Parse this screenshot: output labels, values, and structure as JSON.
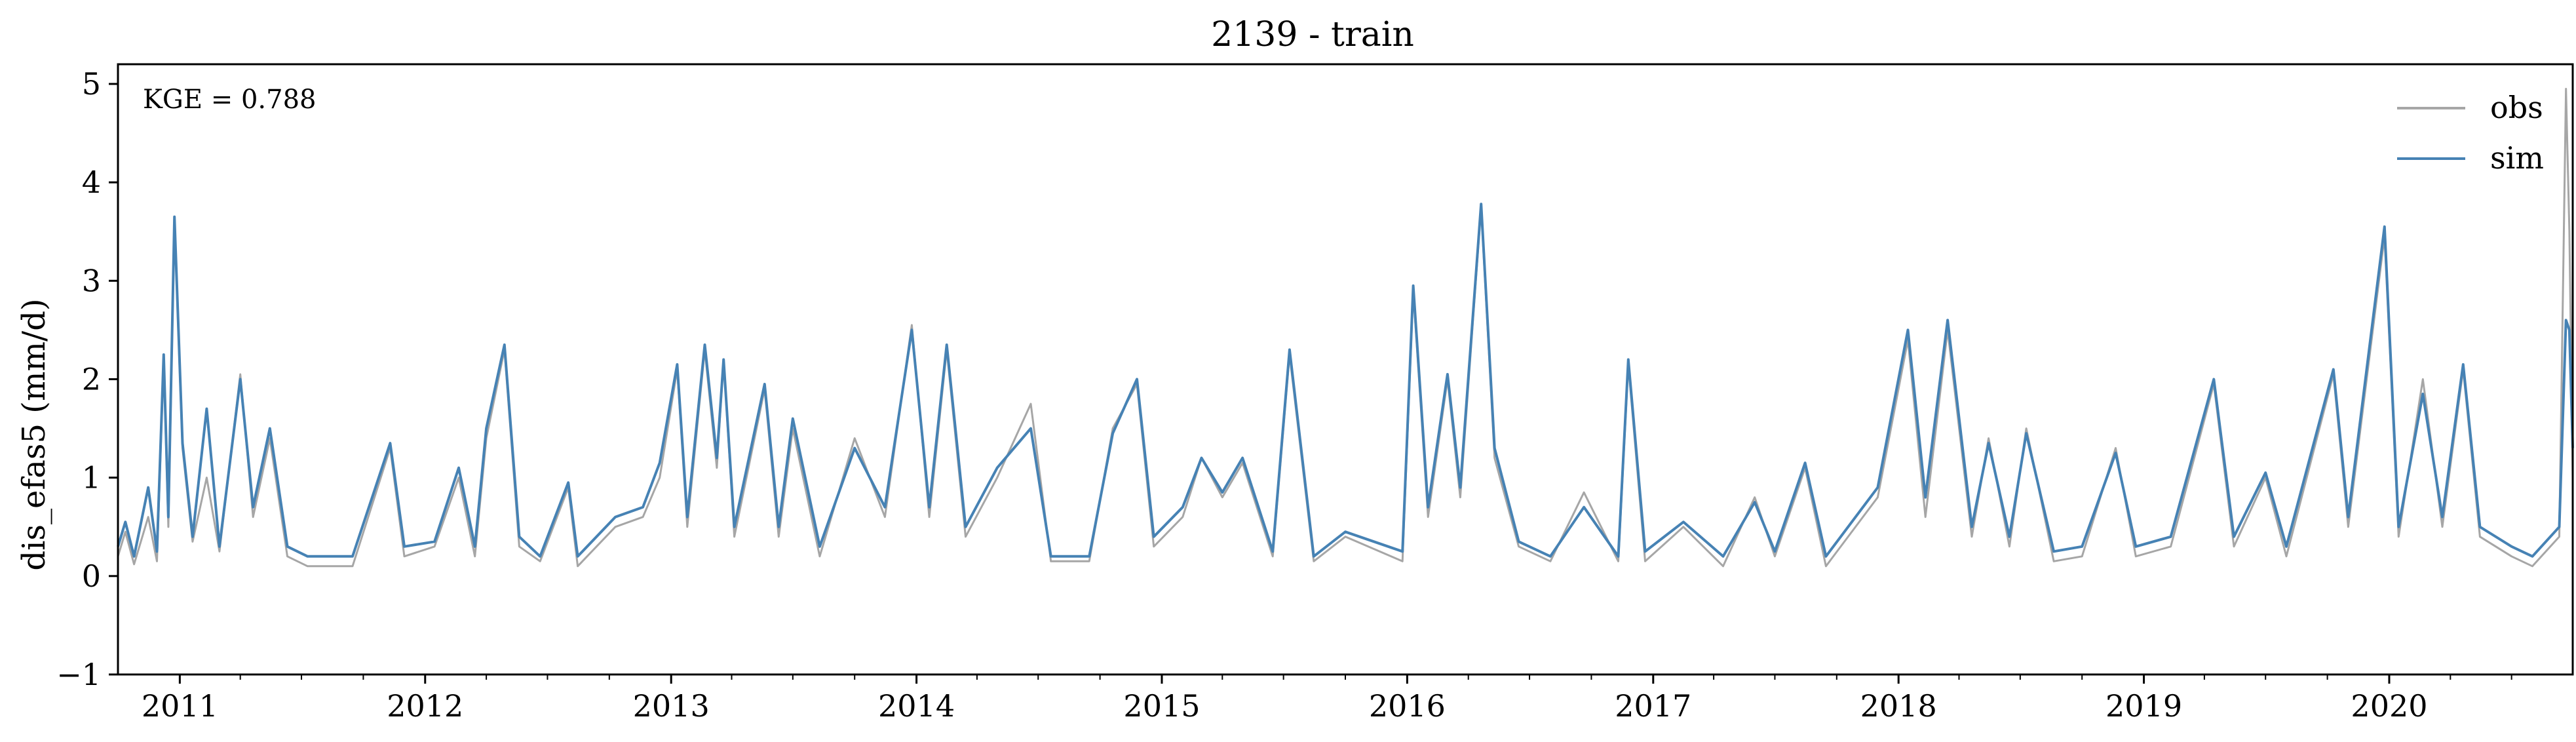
{
  "chart_data": {
    "type": "line",
    "title": "2139 - train",
    "ylabel": "dis_efas5 (mm/d)",
    "xlabel": "",
    "ylim": [
      -1,
      5.2
    ],
    "xlim": [
      "2010-10-01",
      "2020-09-30"
    ],
    "yticks": [
      -1,
      0,
      1,
      2,
      3,
      4,
      5
    ],
    "ytick_labels": [
      "−1",
      "0",
      "1",
      "2",
      "3",
      "4",
      "5"
    ],
    "xticks": [
      "2011-01-01",
      "2012-01-01",
      "2013-01-01",
      "2014-01-01",
      "2015-01-01",
      "2016-01-01",
      "2017-01-01",
      "2018-01-01",
      "2019-01-01",
      "2020-01-01"
    ],
    "xtick_labels": [
      "2011",
      "2012",
      "2013",
      "2014",
      "2015",
      "2016",
      "2017",
      "2018",
      "2019",
      "2020"
    ],
    "annotation": "KGE = 0.788",
    "legend_position": "top-right",
    "grid": false,
    "series": [
      {
        "name": "obs",
        "color": "#a6a6a6",
        "points": [
          [
            "2010-10-01",
            0.2
          ],
          [
            "2010-10-12",
            0.45
          ],
          [
            "2010-10-25",
            0.12
          ],
          [
            "2010-11-15",
            0.6
          ],
          [
            "2010-11-28",
            0.15
          ],
          [
            "2010-12-08",
            2.2
          ],
          [
            "2010-12-15",
            0.5
          ],
          [
            "2010-12-24",
            3.6
          ],
          [
            "2011-01-05",
            1.3
          ],
          [
            "2011-01-20",
            0.35
          ],
          [
            "2011-02-10",
            1.0
          ],
          [
            "2011-03-01",
            0.25
          ],
          [
            "2011-04-01",
            2.05
          ],
          [
            "2011-04-20",
            0.6
          ],
          [
            "2011-05-15",
            1.4
          ],
          [
            "2011-06-10",
            0.2
          ],
          [
            "2011-07-10",
            0.1
          ],
          [
            "2011-09-15",
            0.1
          ],
          [
            "2011-11-10",
            1.3
          ],
          [
            "2011-12-01",
            0.2
          ],
          [
            "2012-01-15",
            0.3
          ],
          [
            "2012-02-20",
            1.0
          ],
          [
            "2012-03-15",
            0.2
          ],
          [
            "2012-04-01",
            1.4
          ],
          [
            "2012-04-28",
            2.3
          ],
          [
            "2012-05-20",
            0.3
          ],
          [
            "2012-06-20",
            0.15
          ],
          [
            "2012-08-01",
            0.9
          ],
          [
            "2012-08-15",
            0.1
          ],
          [
            "2012-10-10",
            0.5
          ],
          [
            "2012-11-20",
            0.6
          ],
          [
            "2012-12-15",
            1.0
          ],
          [
            "2013-01-10",
            2.1
          ],
          [
            "2013-01-25",
            0.5
          ],
          [
            "2013-02-20",
            2.3
          ],
          [
            "2013-03-10",
            1.1
          ],
          [
            "2013-03-20",
            2.2
          ],
          [
            "2013-04-05",
            0.4
          ],
          [
            "2013-05-20",
            1.9
          ],
          [
            "2013-06-10",
            0.4
          ],
          [
            "2013-07-01",
            1.5
          ],
          [
            "2013-08-10",
            0.2
          ],
          [
            "2013-10-01",
            1.4
          ],
          [
            "2013-11-15",
            0.6
          ],
          [
            "2013-12-25",
            2.55
          ],
          [
            "2014-01-20",
            0.6
          ],
          [
            "2014-02-15",
            2.3
          ],
          [
            "2014-03-15",
            0.4
          ],
          [
            "2014-05-01",
            1.0
          ],
          [
            "2014-06-20",
            1.75
          ],
          [
            "2014-07-20",
            0.15
          ],
          [
            "2014-09-15",
            0.15
          ],
          [
            "2014-10-20",
            1.5
          ],
          [
            "2014-11-25",
            1.95
          ],
          [
            "2014-12-20",
            0.3
          ],
          [
            "2015-02-01",
            0.6
          ],
          [
            "2015-03-01",
            1.2
          ],
          [
            "2015-04-01",
            0.8
          ],
          [
            "2015-05-01",
            1.15
          ],
          [
            "2015-06-15",
            0.2
          ],
          [
            "2015-07-10",
            2.25
          ],
          [
            "2015-08-15",
            0.15
          ],
          [
            "2015-10-01",
            0.4
          ],
          [
            "2015-12-25",
            0.15
          ],
          [
            "2016-01-10",
            2.9
          ],
          [
            "2016-02-01",
            0.6
          ],
          [
            "2016-03-01",
            2.0
          ],
          [
            "2016-03-20",
            0.8
          ],
          [
            "2016-04-20",
            3.75
          ],
          [
            "2016-05-10",
            1.2
          ],
          [
            "2016-06-15",
            0.3
          ],
          [
            "2016-08-01",
            0.15
          ],
          [
            "2016-09-20",
            0.85
          ],
          [
            "2016-11-10",
            0.15
          ],
          [
            "2016-11-25",
            2.15
          ],
          [
            "2016-12-20",
            0.15
          ],
          [
            "2017-02-15",
            0.5
          ],
          [
            "2017-04-15",
            0.1
          ],
          [
            "2017-06-01",
            0.8
          ],
          [
            "2017-07-01",
            0.2
          ],
          [
            "2017-08-15",
            1.1
          ],
          [
            "2017-09-15",
            0.1
          ],
          [
            "2017-12-01",
            0.8
          ],
          [
            "2018-01-15",
            2.4
          ],
          [
            "2018-02-10",
            0.6
          ],
          [
            "2018-03-15",
            2.5
          ],
          [
            "2018-04-20",
            0.4
          ],
          [
            "2018-05-15",
            1.4
          ],
          [
            "2018-06-15",
            0.3
          ],
          [
            "2018-07-10",
            1.5
          ],
          [
            "2018-08-20",
            0.15
          ],
          [
            "2018-10-01",
            0.2
          ],
          [
            "2018-11-20",
            1.3
          ],
          [
            "2018-12-20",
            0.2
          ],
          [
            "2019-02-10",
            0.3
          ],
          [
            "2019-04-15",
            1.95
          ],
          [
            "2019-05-15",
            0.3
          ],
          [
            "2019-07-01",
            1.0
          ],
          [
            "2019-08-01",
            0.2
          ],
          [
            "2019-10-10",
            2.05
          ],
          [
            "2019-11-01",
            0.5
          ],
          [
            "2019-12-25",
            3.45
          ],
          [
            "2020-01-15",
            0.4
          ],
          [
            "2020-02-20",
            2.0
          ],
          [
            "2020-03-20",
            0.5
          ],
          [
            "2020-04-20",
            2.1
          ],
          [
            "2020-05-15",
            0.4
          ],
          [
            "2020-07-01",
            0.2
          ],
          [
            "2020-08-01",
            0.1
          ],
          [
            "2020-09-10",
            0.4
          ],
          [
            "2020-09-20",
            4.95
          ],
          [
            "2020-09-25",
            3.5
          ],
          [
            "2020-09-30",
            1.0
          ]
        ]
      },
      {
        "name": "sim",
        "color": "#4682b4",
        "points": [
          [
            "2010-10-01",
            0.3
          ],
          [
            "2010-10-12",
            0.55
          ],
          [
            "2010-10-25",
            0.2
          ],
          [
            "2010-11-15",
            0.9
          ],
          [
            "2010-11-28",
            0.25
          ],
          [
            "2010-12-08",
            2.25
          ],
          [
            "2010-12-15",
            0.6
          ],
          [
            "2010-12-24",
            3.65
          ],
          [
            "2011-01-05",
            1.35
          ],
          [
            "2011-01-20",
            0.4
          ],
          [
            "2011-02-10",
            1.7
          ],
          [
            "2011-03-01",
            0.3
          ],
          [
            "2011-04-01",
            2.0
          ],
          [
            "2011-04-20",
            0.7
          ],
          [
            "2011-05-15",
            1.5
          ],
          [
            "2011-06-10",
            0.3
          ],
          [
            "2011-07-10",
            0.2
          ],
          [
            "2011-09-15",
            0.2
          ],
          [
            "2011-11-10",
            1.35
          ],
          [
            "2011-12-01",
            0.3
          ],
          [
            "2012-01-15",
            0.35
          ],
          [
            "2012-02-20",
            1.1
          ],
          [
            "2012-03-15",
            0.3
          ],
          [
            "2012-04-01",
            1.5
          ],
          [
            "2012-04-28",
            2.35
          ],
          [
            "2012-05-20",
            0.4
          ],
          [
            "2012-06-20",
            0.2
          ],
          [
            "2012-08-01",
            0.95
          ],
          [
            "2012-08-15",
            0.2
          ],
          [
            "2012-10-10",
            0.6
          ],
          [
            "2012-11-20",
            0.7
          ],
          [
            "2012-12-15",
            1.15
          ],
          [
            "2013-01-10",
            2.15
          ],
          [
            "2013-01-25",
            0.6
          ],
          [
            "2013-02-20",
            2.35
          ],
          [
            "2013-03-10",
            1.2
          ],
          [
            "2013-03-20",
            2.2
          ],
          [
            "2013-04-05",
            0.5
          ],
          [
            "2013-05-20",
            1.95
          ],
          [
            "2013-06-10",
            0.5
          ],
          [
            "2013-07-01",
            1.6
          ],
          [
            "2013-08-10",
            0.3
          ],
          [
            "2013-10-01",
            1.3
          ],
          [
            "2013-11-15",
            0.7
          ],
          [
            "2013-12-25",
            2.5
          ],
          [
            "2014-01-20",
            0.7
          ],
          [
            "2014-02-15",
            2.35
          ],
          [
            "2014-03-15",
            0.5
          ],
          [
            "2014-05-01",
            1.1
          ],
          [
            "2014-06-20",
            1.5
          ],
          [
            "2014-07-20",
            0.2
          ],
          [
            "2014-09-15",
            0.2
          ],
          [
            "2014-10-20",
            1.45
          ],
          [
            "2014-11-25",
            2.0
          ],
          [
            "2014-12-20",
            0.4
          ],
          [
            "2015-02-01",
            0.7
          ],
          [
            "2015-03-01",
            1.2
          ],
          [
            "2015-04-01",
            0.85
          ],
          [
            "2015-05-01",
            1.2
          ],
          [
            "2015-06-15",
            0.25
          ],
          [
            "2015-07-10",
            2.3
          ],
          [
            "2015-08-15",
            0.2
          ],
          [
            "2015-10-01",
            0.45
          ],
          [
            "2015-12-25",
            0.25
          ],
          [
            "2016-01-10",
            2.95
          ],
          [
            "2016-02-01",
            0.7
          ],
          [
            "2016-03-01",
            2.05
          ],
          [
            "2016-03-20",
            0.9
          ],
          [
            "2016-04-20",
            3.78
          ],
          [
            "2016-05-10",
            1.3
          ],
          [
            "2016-06-15",
            0.35
          ],
          [
            "2016-08-01",
            0.2
          ],
          [
            "2016-09-20",
            0.7
          ],
          [
            "2016-11-10",
            0.2
          ],
          [
            "2016-11-25",
            2.2
          ],
          [
            "2016-12-20",
            0.25
          ],
          [
            "2017-02-15",
            0.55
          ],
          [
            "2017-04-15",
            0.2
          ],
          [
            "2017-06-01",
            0.75
          ],
          [
            "2017-07-01",
            0.25
          ],
          [
            "2017-08-15",
            1.15
          ],
          [
            "2017-09-15",
            0.2
          ],
          [
            "2017-12-01",
            0.9
          ],
          [
            "2018-01-15",
            2.5
          ],
          [
            "2018-02-10",
            0.8
          ],
          [
            "2018-03-15",
            2.6
          ],
          [
            "2018-04-20",
            0.5
          ],
          [
            "2018-05-15",
            1.35
          ],
          [
            "2018-06-15",
            0.4
          ],
          [
            "2018-07-10",
            1.45
          ],
          [
            "2018-08-20",
            0.25
          ],
          [
            "2018-10-01",
            0.3
          ],
          [
            "2018-11-20",
            1.25
          ],
          [
            "2018-12-20",
            0.3
          ],
          [
            "2019-02-10",
            0.4
          ],
          [
            "2019-04-15",
            2.0
          ],
          [
            "2019-05-15",
            0.4
          ],
          [
            "2019-07-01",
            1.05
          ],
          [
            "2019-08-01",
            0.3
          ],
          [
            "2019-10-10",
            2.1
          ],
          [
            "2019-11-01",
            0.6
          ],
          [
            "2019-12-25",
            3.55
          ],
          [
            "2020-01-15",
            0.5
          ],
          [
            "2020-02-20",
            1.85
          ],
          [
            "2020-03-20",
            0.6
          ],
          [
            "2020-04-20",
            2.15
          ],
          [
            "2020-05-15",
            0.5
          ],
          [
            "2020-07-01",
            0.3
          ],
          [
            "2020-08-01",
            0.2
          ],
          [
            "2020-09-10",
            0.5
          ],
          [
            "2020-09-20",
            2.6
          ],
          [
            "2020-09-25",
            2.5
          ],
          [
            "2020-09-30",
            1.3
          ]
        ]
      }
    ]
  }
}
